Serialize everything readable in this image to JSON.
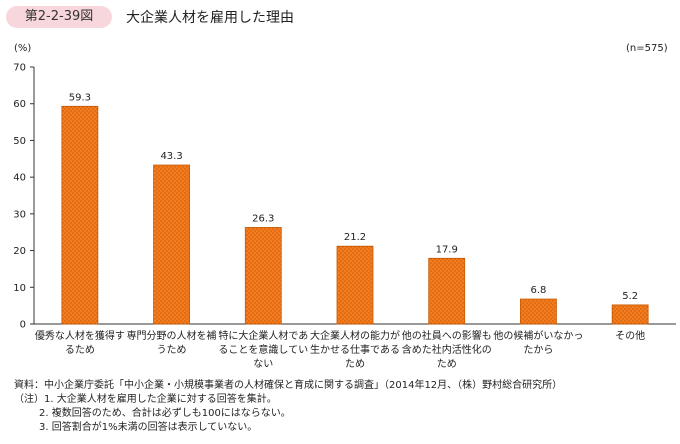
{
  "header": {
    "figure_no": "第2-2-39図",
    "title": "大企業人材を雇用した理由"
  },
  "chart_data": {
    "type": "bar",
    "unit_label": "(%)",
    "n_label": "(n=575)",
    "categories": [
      [
        "優秀な人材を獲得す",
        "るため"
      ],
      [
        "専門分野の人材を補",
        "うため"
      ],
      [
        "特に大企業人材であ",
        "ることを意識してい",
        "ない"
      ],
      [
        "大企業人材の能力が",
        "生かせる仕事である",
        "ため"
      ],
      [
        "他の社員への影響も",
        "含めた社内活性化の",
        "ため"
      ],
      [
        "他の候補がいなかっ",
        "たから"
      ],
      [
        "その他"
      ]
    ],
    "values": [
      59.3,
      43.3,
      26.3,
      21.2,
      17.9,
      6.8,
      5.2
    ],
    "value_labels": [
      "59.3",
      "43.3",
      "26.3",
      "21.2",
      "17.9",
      "6.8",
      "5.2"
    ],
    "ylim": [
      0,
      70
    ],
    "yticks": [
      "0",
      "10",
      "20",
      "30",
      "40",
      "50",
      "60",
      "70"
    ],
    "bar_color": "#f47c20",
    "bar_hatch_color": "#c85800",
    "grid": false,
    "legend": "none"
  },
  "notes": {
    "source": "資料：中小企業庁委託「中小企業・小規模事業者の人材確保と育成に関する調査」（2014年12月、（株）野村総合研究所）",
    "note1": "（注）1. 大企業人材を雇用した企業に対する回答を集計。",
    "note2": "2. 複数回答のため、合計は必ずしも100にはならない。",
    "note3": "3. 回答割合が1%未満の回答は表示していない。"
  }
}
